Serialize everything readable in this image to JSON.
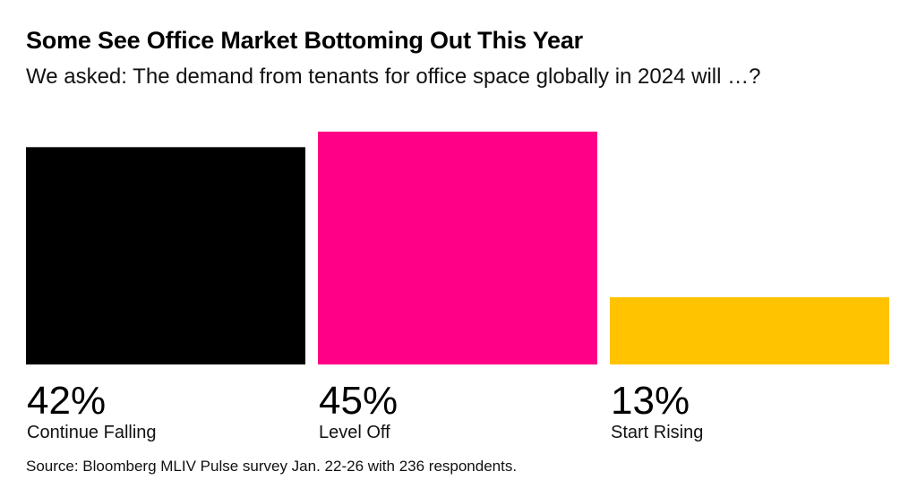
{
  "chart_data": {
    "type": "bar",
    "title": "Some See Office Market Bottoming Out This Year",
    "subtitle": "We asked: The demand from tenants for office space globally in 2024 will …?",
    "categories": [
      "Continue Falling",
      "Level Off",
      "Start Rising"
    ],
    "values": [
      42,
      45,
      13
    ],
    "value_labels": [
      "42%",
      "45%",
      "13%"
    ],
    "colors": [
      "#000000",
      "#ff0087",
      "#ffc300"
    ],
    "xlabel": "",
    "ylabel": "",
    "unit": "%",
    "ylim": [
      0,
      45
    ],
    "grid": false,
    "legend": "none",
    "source": "Source: Bloomberg MLIV Pulse survey Jan. 22-26 with 236 respondents."
  }
}
